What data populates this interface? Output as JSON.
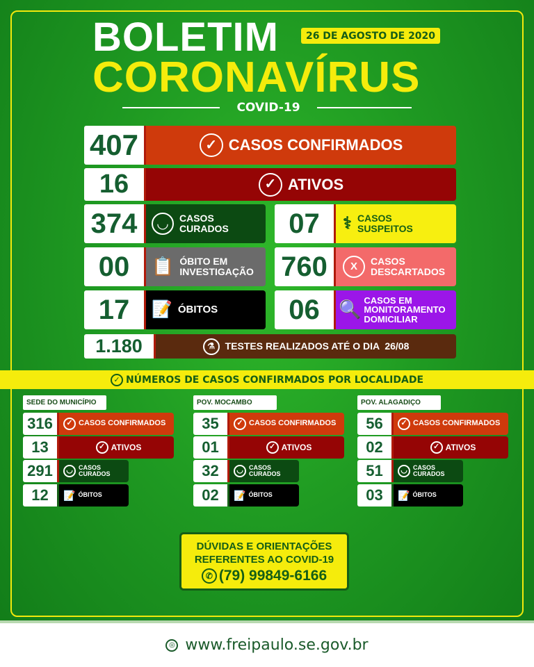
{
  "header": {
    "title1": "BOLETIM",
    "title2": "CORONAVÍRUS",
    "date": "26 DE AGOSTO DE 2020",
    "subtitle": "COVID-19"
  },
  "colors": {
    "confirmed": "#cf3a0c",
    "active": "#950505",
    "cured": "#0c4a12",
    "suspect": "#f7ef10",
    "investigation": "#6b6b6b",
    "discarded": "#f36a6a",
    "deaths": "#000000",
    "monitoring": "#9b16e8",
    "tests": "#5a2a0e",
    "accent": "#f5ec0c"
  },
  "stats": {
    "confirmed": {
      "value": "407",
      "label": "CASOS CONFIRMADOS",
      "icon": "check-circle-icon"
    },
    "active": {
      "value": "16",
      "label": "ATIVOS",
      "icon": "check-circle-icon"
    },
    "cured": {
      "value": "374",
      "label1": "CASOS",
      "label2": "CURADOS",
      "icon": "smiley-icon"
    },
    "suspect": {
      "value": "07",
      "label1": "CASOS",
      "label2": "SUSPEITOS",
      "icon": "stethoscope-icon"
    },
    "investigation": {
      "value": "00",
      "label1": "ÓBITO EM",
      "label2": "INVESTIGAÇÃO",
      "icon": "medical-report-icon"
    },
    "discarded": {
      "value": "760",
      "label1": "CASOS",
      "label2": "DESCARTADOS",
      "icon": "x-circle-icon"
    },
    "deaths": {
      "value": "17",
      "label": "ÓBITOS",
      "icon": "document-pen-icon"
    },
    "monitoring": {
      "value": "06",
      "label1": "CASOS EM",
      "label2": "MONITORAMENTO",
      "label3": "DOMICILIAR",
      "icon": "magnifier-icon"
    },
    "tests": {
      "value": "1.180",
      "label": "TESTES REALIZADOS ATÉ O DIA  26/08",
      "icon": "flask-icon"
    }
  },
  "banner": "NÚMEROS DE CASOS CONFIRMADOS POR LOCALIDADE",
  "localities": [
    {
      "name": "SEDE DO MUNICÍPIO",
      "confirmed": "316",
      "active": "13",
      "cured": "291",
      "deaths": "12"
    },
    {
      "name": "POV. MOCAMBO",
      "confirmed": "35",
      "active": "01",
      "cured": "32",
      "deaths": "02"
    },
    {
      "name": "POV. ALAGADIÇO",
      "confirmed": "56",
      "active": "02",
      "cured": "51",
      "deaths": "03"
    }
  ],
  "locality_labels": {
    "confirmed": "CASOS CONFIRMADOS",
    "active": "ATIVOS",
    "cured1": "CASOS",
    "cured2": "CURADOS",
    "deaths": "ÓBITOS"
  },
  "contact": {
    "line1": "DÚVIDAS E ORIENTAÇÕES",
    "line2": "REFERENTES AO COVID-19",
    "phone": "(79) 99849-6166",
    "icon": "whatsapp-icon"
  },
  "footer": {
    "url": "www.freipaulo.se.gov.br",
    "icon": "globe-icon"
  }
}
